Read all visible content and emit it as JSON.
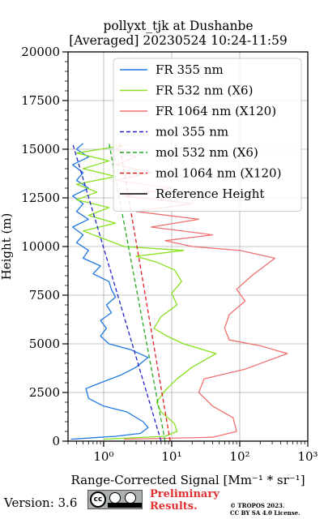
{
  "chart_data": {
    "type": "line",
    "title": "pollyxt_tjk at Dushanbe",
    "subtitle": "[Averaged] 20230524 10:24-11:59",
    "xlabel": "Range-Corrected Signal [Mm⁻¹ * sr⁻¹]",
    "ylabel": "Height (m)",
    "xscale": "log",
    "xlim": [
      0.3,
      1000
    ],
    "ylim": [
      0,
      20000
    ],
    "x_tick_labels": [
      "10⁰",
      "10¹",
      "10²",
      "10³"
    ],
    "x_tick_values": [
      1,
      10,
      100,
      1000
    ],
    "y_ticks": [
      0,
      2500,
      5000,
      7500,
      10000,
      12500,
      15000,
      17500,
      20000
    ],
    "grid": true,
    "legend_position": "top-right",
    "series": [
      {
        "name": "FR 355 nm",
        "style": "solid",
        "color": "#1f77e0",
        "points": [
          [
            0.33,
            100
          ],
          [
            1.5,
            250
          ],
          [
            3.5,
            400
          ],
          [
            4.5,
            700
          ],
          [
            3.8,
            1000
          ],
          [
            2.2,
            1500
          ],
          [
            1.0,
            1800
          ],
          [
            0.6,
            2200
          ],
          [
            0.55,
            2700
          ],
          [
            0.9,
            3000
          ],
          [
            1.8,
            3400
          ],
          [
            3.0,
            3800
          ],
          [
            4.5,
            4300
          ],
          [
            2.5,
            4700
          ],
          [
            1.2,
            5000
          ],
          [
            0.9,
            5400
          ],
          [
            1.1,
            5800
          ],
          [
            0.9,
            6200
          ],
          [
            1.3,
            6600
          ],
          [
            1.1,
            7000
          ],
          [
            1.5,
            7400
          ],
          [
            1.3,
            7800
          ],
          [
            1.2,
            8200
          ],
          [
            0.7,
            8600
          ],
          [
            0.9,
            9000
          ],
          [
            0.5,
            9400
          ],
          [
            0.6,
            9800
          ],
          [
            0.4,
            10200
          ],
          [
            0.5,
            10600
          ],
          [
            0.35,
            11000
          ],
          [
            0.6,
            11400
          ],
          [
            0.4,
            11800
          ],
          [
            0.5,
            12200
          ],
          [
            0.35,
            12600
          ],
          [
            0.6,
            13000
          ],
          [
            0.4,
            13400
          ],
          [
            0.5,
            13800
          ],
          [
            0.35,
            14200
          ],
          [
            0.6,
            14600
          ],
          [
            0.4,
            15000
          ],
          [
            0.5,
            15300
          ]
        ]
      },
      {
        "name": "FR 532 nm (X6)",
        "style": "solid",
        "color": "#88e020",
        "points": [
          [
            1.0,
            100
          ],
          [
            8.0,
            250
          ],
          [
            12,
            500
          ],
          [
            11,
            900
          ],
          [
            7.0,
            1500
          ],
          [
            6.0,
            2000
          ],
          [
            8.0,
            2600
          ],
          [
            12,
            3200
          ],
          [
            20,
            3800
          ],
          [
            45,
            4500
          ],
          [
            15,
            5000
          ],
          [
            8.5,
            5400
          ],
          [
            5.5,
            5800
          ],
          [
            7.0,
            6400
          ],
          [
            12,
            7000
          ],
          [
            10,
            7600
          ],
          [
            14,
            8200
          ],
          [
            11,
            8800
          ],
          [
            6.0,
            9200
          ],
          [
            3.0,
            9500
          ],
          [
            15,
            9800
          ],
          [
            2.0,
            10000
          ],
          [
            1.0,
            10400
          ],
          [
            0.5,
            10800
          ],
          [
            1.5,
            11200
          ],
          [
            0.6,
            11600
          ],
          [
            1.2,
            12000
          ],
          [
            0.4,
            12400
          ],
          [
            0.8,
            12800
          ],
          [
            0.4,
            13200
          ],
          [
            1.5,
            13600
          ],
          [
            0.5,
            14000
          ],
          [
            1.2,
            14400
          ],
          [
            0.4,
            14800
          ],
          [
            2.0,
            15200
          ]
        ]
      },
      {
        "name": "FR 1064 nm (X120)",
        "style": "solid",
        "color": "#f07070",
        "points": [
          [
            2.0,
            100
          ],
          [
            40,
            200
          ],
          [
            90,
            500
          ],
          [
            80,
            1200
          ],
          [
            40,
            1800
          ],
          [
            25,
            2500
          ],
          [
            30,
            3200
          ],
          [
            120,
            3700
          ],
          [
            500,
            4500
          ],
          [
            200,
            4900
          ],
          [
            70,
            5200
          ],
          [
            60,
            5800
          ],
          [
            70,
            6500
          ],
          [
            120,
            7200
          ],
          [
            90,
            7800
          ],
          [
            150,
            8500
          ],
          [
            330,
            9400
          ],
          [
            100,
            9800
          ],
          [
            20,
            10000
          ],
          [
            8.0,
            10300
          ],
          [
            40,
            10600
          ],
          [
            5.0,
            11000
          ],
          [
            25,
            11400
          ],
          [
            3.0,
            11800
          ],
          [
            20,
            12200
          ],
          [
            2.0,
            12600
          ],
          [
            10,
            13000
          ],
          [
            1.5,
            13400
          ],
          [
            5.0,
            13800
          ],
          [
            1.5,
            14200
          ],
          [
            3.0,
            14600
          ],
          [
            1.5,
            15000
          ],
          [
            2.0,
            15200
          ]
        ]
      },
      {
        "name": "mol 355 nm",
        "style": "dashed",
        "color": "#2222cc",
        "points": [
          [
            7.0,
            0
          ],
          [
            0.35,
            15300
          ]
        ]
      },
      {
        "name": "mol 532 nm (X6)",
        "style": "dashed",
        "color": "#22aa22",
        "points": [
          [
            8.0,
            0
          ],
          [
            1.2,
            15300
          ]
        ]
      },
      {
        "name": "mol 1064 nm (X120)",
        "style": "dashed",
        "color": "#dd2222",
        "points": [
          [
            9.5,
            0
          ],
          [
            1.7,
            15300
          ]
        ]
      },
      {
        "name": "Reference Height",
        "style": "solid",
        "color": "#000000",
        "points": []
      }
    ]
  },
  "footer": {
    "version": "Version: 3.6",
    "license_badge": "CC BY SA",
    "preliminary_line1": "Preliminary",
    "preliminary_line2": "Results.",
    "copyright_line1": "© TROPOS 2023.",
    "copyright_line2": "CC BY SA 4.0 License."
  }
}
